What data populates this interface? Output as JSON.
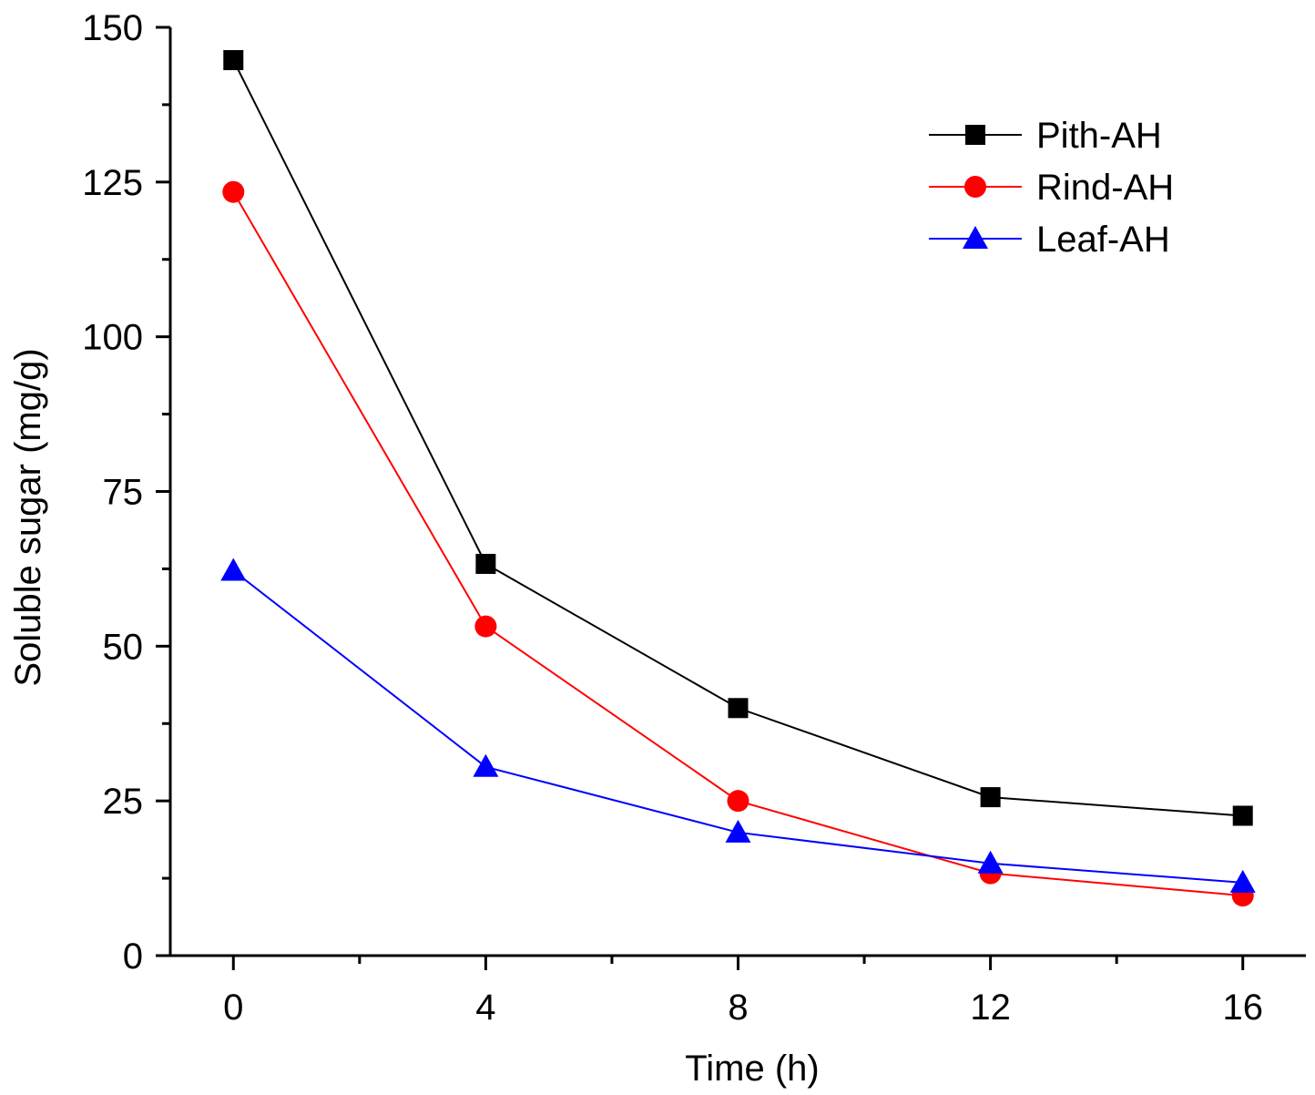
{
  "chart_data": {
    "type": "line",
    "title": "",
    "xlabel": "Time (h)",
    "ylabel": "Soluble sugar (mg/g)",
    "xlim": [
      -1,
      17
    ],
    "ylim": [
      0,
      150
    ],
    "x_ticks": [
      0,
      4,
      8,
      12,
      16
    ],
    "x_tick_labels": [
      "0",
      "4",
      "8",
      "12",
      "16"
    ],
    "x_minor_ticks": [
      2,
      6,
      10,
      14
    ],
    "y_ticks": [
      0,
      25,
      50,
      75,
      100,
      125,
      150
    ],
    "y_tick_labels": [
      "0",
      "25",
      "50",
      "75",
      "100",
      "125",
      "150"
    ],
    "y_minor_ticks": [
      12.5,
      37.5,
      62.5,
      87.5,
      112.5,
      137.5
    ],
    "x": [
      0,
      4,
      8,
      12,
      16
    ],
    "legend_position": "top-right",
    "series": [
      {
        "name": "Pith-AH",
        "color": "#000000",
        "marker": "square",
        "values": [
          144.7,
          63.3,
          40.0,
          25.6,
          22.6
        ]
      },
      {
        "name": "Rind-AH",
        "color": "#ff0000",
        "marker": "circle",
        "values": [
          123.4,
          53.2,
          25.0,
          13.3,
          9.7
        ]
      },
      {
        "name": "Leaf-AH",
        "color": "#0000ff",
        "marker": "triangle",
        "values": [
          62.2,
          30.5,
          19.9,
          14.9,
          11.8
        ]
      }
    ]
  }
}
